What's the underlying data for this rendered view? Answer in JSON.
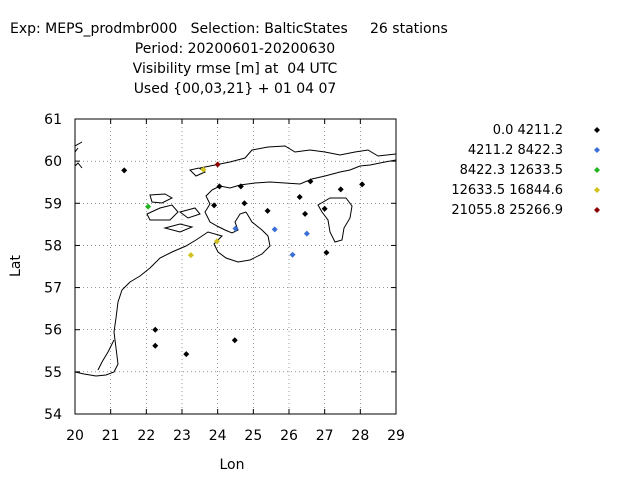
{
  "title": {
    "line1": "Exp: MEPS_prodmbr000   Selection: BalticStates     26 stations",
    "line2": "Period: 20200601-20200630",
    "line3": "Visibility rmse [m] at  04 UTC",
    "line4": "Used {00,03,21} + 01 04 07"
  },
  "chart_data": {
    "type": "scatter",
    "xlabel": "Lon",
    "ylabel": "Lat",
    "xlim": [
      20,
      29
    ],
    "ylim": [
      54,
      61
    ],
    "xticks": [
      "20",
      "21",
      "22",
      "23",
      "24",
      "25",
      "26",
      "27",
      "28",
      "29"
    ],
    "yticks": [
      "54",
      "55",
      "56",
      "57",
      "58",
      "59",
      "60",
      "61"
    ],
    "grid": true,
    "legend_position": "top-right",
    "classes": [
      {
        "label": "0.0 4211.2",
        "color": "#000000"
      },
      {
        "label": "4211.2 8422.3",
        "color": "#3b6fd8"
      },
      {
        "label": "8422.3 12633.5",
        "color": "#22b522"
      },
      {
        "label": "12633.5 16844.6",
        "color": "#d0c21a"
      },
      {
        "label": "21055.8 25266.9",
        "color": "#8b0000"
      }
    ],
    "stations": [
      {
        "lon": 21.38,
        "lat": 59.78,
        "class": 0
      },
      {
        "lon": 22.05,
        "lat": 58.92,
        "class": 2
      },
      {
        "lon": 22.25,
        "lat": 56.0,
        "class": 0
      },
      {
        "lon": 22.25,
        "lat": 55.62,
        "class": 0
      },
      {
        "lon": 23.12,
        "lat": 55.42,
        "class": 0
      },
      {
        "lon": 23.25,
        "lat": 57.77,
        "class": 3
      },
      {
        "lon": 23.6,
        "lat": 59.8,
        "class": 3
      },
      {
        "lon": 23.9,
        "lat": 58.95,
        "class": 0
      },
      {
        "lon": 24.0,
        "lat": 59.92,
        "class": 4
      },
      {
        "lon": 24.05,
        "lat": 59.4,
        "class": 0
      },
      {
        "lon": 23.98,
        "lat": 58.1,
        "class": 3
      },
      {
        "lon": 24.5,
        "lat": 58.4,
        "class": 1
      },
      {
        "lon": 24.48,
        "lat": 55.75,
        "class": 0
      },
      {
        "lon": 24.65,
        "lat": 59.4,
        "class": 0
      },
      {
        "lon": 24.75,
        "lat": 59.0,
        "class": 0
      },
      {
        "lon": 25.4,
        "lat": 58.82,
        "class": 0
      },
      {
        "lon": 25.6,
        "lat": 58.38,
        "class": 1
      },
      {
        "lon": 26.1,
        "lat": 57.78,
        "class": 1
      },
      {
        "lon": 26.3,
        "lat": 59.15,
        "class": 0
      },
      {
        "lon": 26.45,
        "lat": 58.75,
        "class": 0
      },
      {
        "lon": 26.5,
        "lat": 58.28,
        "class": 1
      },
      {
        "lon": 26.6,
        "lat": 59.52,
        "class": 0
      },
      {
        "lon": 27.0,
        "lat": 58.87,
        "class": 0
      },
      {
        "lon": 27.05,
        "lat": 57.83,
        "class": 0
      },
      {
        "lon": 27.45,
        "lat": 59.33,
        "class": 0
      },
      {
        "lon": 28.05,
        "lat": 59.45,
        "class": 0
      }
    ]
  }
}
